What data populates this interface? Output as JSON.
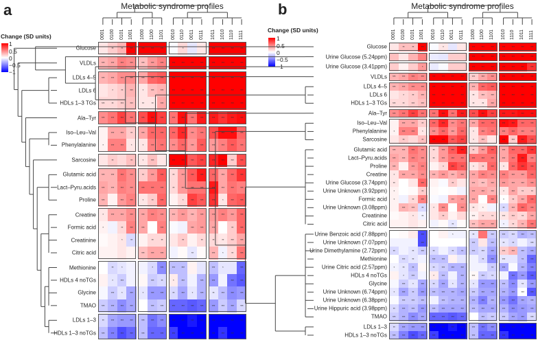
{
  "panels": {
    "a": {
      "letter": "a",
      "title": "Metabolic syndrome profiles"
    },
    "b": {
      "letter": "b",
      "title": "Metabolic syndrome profiles"
    }
  },
  "legend": {
    "title": "Change (SD units)",
    "ticks": [
      "1",
      "0.5",
      "0",
      "−0.5",
      "−1"
    ],
    "colors": {
      "high": "#ff0000",
      "mid": "#ffffff",
      "low": "#0000ff"
    }
  },
  "star_key": {
    "0": "",
    "1": "*",
    "2": "**",
    "3": "***"
  },
  "chart_data": [
    {
      "type": "heatmap",
      "panel": "a",
      "title": "Metabolic syndrome profiles",
      "legend_title": "Change (SD units)",
      "value_range": [
        -1,
        1
      ],
      "column_groups": [
        [
          "0001",
          "0100",
          "0101",
          "1001"
        ],
        [
          "1000",
          "1100",
          "1101"
        ],
        [
          "0010",
          "0110",
          "0011",
          "0111"
        ],
        [
          "1011",
          "1010",
          "1110",
          "1111"
        ]
      ],
      "row_groups": [
        [
          "Glucose"
        ],
        [
          "VLDLs"
        ],
        [
          "LDLs 4–5",
          "LDLs 6",
          "HDLs 1–3 TGs"
        ],
        [
          "Ala–Tyr"
        ],
        [
          "Iso–Leu–Val",
          "Phenylalanine"
        ],
        [
          "Sarcosine"
        ],
        [
          "Glutamic acid",
          "Lact–Pyru.acids",
          "Proline"
        ],
        [
          "Creatine",
          "Formic acid",
          "Creatinine",
          "Citric acid"
        ],
        [
          "Methionine",
          "HDLs 4 noTGs",
          "Glycine",
          "TMAO"
        ],
        [
          "LDLs 1–3",
          "HDLs 1–3 noTGs"
        ]
      ],
      "values": [
        [
          0.1,
          0.2,
          0.3,
          1,
          1,
          1,
          1,
          -0.02,
          0.15,
          -0.1,
          0.1,
          1,
          1,
          1,
          1
        ],
        [
          0.3,
          0.35,
          0.5,
          0.45,
          0.25,
          0.4,
          0.5,
          1,
          1,
          1,
          1,
          1,
          1,
          1,
          1
        ],
        [
          0.3,
          0.35,
          0.45,
          0.45,
          0.35,
          0.6,
          0.65,
          1,
          1,
          1,
          1,
          1,
          1,
          1,
          1
        ],
        [
          0.1,
          0.15,
          0.2,
          0.3,
          0.1,
          0.25,
          0.3,
          1,
          1,
          1,
          1,
          1,
          1,
          1,
          1
        ],
        [
          0.15,
          0.15,
          0.2,
          0.25,
          0.1,
          0.1,
          0.35,
          1,
          1,
          1,
          1,
          1,
          1,
          1,
          1
        ],
        [
          0.45,
          0.55,
          0.75,
          0.55,
          0.7,
          0.95,
          0.75,
          0.55,
          0.95,
          0.55,
          0.9,
          0.9,
          0.8,
          0.9,
          0.95
        ],
        [
          0.05,
          0.35,
          0.35,
          0.2,
          0.35,
          0.6,
          0.6,
          0.6,
          0.85,
          0.45,
          0.55,
          0.7,
          0.95,
          0.95,
          0.6
        ],
        [
          0.05,
          0.5,
          0.5,
          0.1,
          0.1,
          0.5,
          0.55,
          0.45,
          0.6,
          0.4,
          0.65,
          0.4,
          0.5,
          0.65,
          0.55
        ],
        [
          0.1,
          0.2,
          0.15,
          0.25,
          0.1,
          0.25,
          0.1,
          1,
          1,
          0.65,
          0.75,
          0.85,
          1,
          0.2,
          0.7
        ],
        [
          0.3,
          0.3,
          0.55,
          0.45,
          0.2,
          0.4,
          0.65,
          0.15,
          0.4,
          0.65,
          0.9,
          0.6,
          0.35,
          0.6,
          0.8
        ],
        [
          0.35,
          0.3,
          0.5,
          0.45,
          0.55,
          0.55,
          0.55,
          0.15,
          0.4,
          0.55,
          0.55,
          0.9,
          0.35,
          0.55,
          0.5
        ],
        [
          0.3,
          0.05,
          0.4,
          0.5,
          0.1,
          0.2,
          0.6,
          0.05,
          0.15,
          0.75,
          0.65,
          0.8,
          0.1,
          0.6,
          0.65
        ],
        [
          0.1,
          0.35,
          0.35,
          0.45,
          0.35,
          0.5,
          0.45,
          0.3,
          0.4,
          0.3,
          0.4,
          0.4,
          0.5,
          0.4,
          0.6
        ],
        [
          0.05,
          -0.05,
          0.15,
          0.5,
          0.35,
          0,
          0.5,
          -0.02,
          -0.05,
          0.35,
          0.4,
          0.35,
          0,
          0.2,
          0.6
        ],
        [
          0.02,
          0.05,
          0.1,
          -0.15,
          0.05,
          0.15,
          0.15,
          0.1,
          0.2,
          0.05,
          0.15,
          0.15,
          0.1,
          0.2,
          0.35
        ],
        [
          0.05,
          0.05,
          0.1,
          0.05,
          0.25,
          0.35,
          0.35,
          -0.05,
          0.02,
          -0.1,
          0.02,
          0.3,
          -0.05,
          0.15,
          0.55
        ],
        [
          0,
          -0.15,
          -0.1,
          -0.05,
          -0.05,
          -0.15,
          -0.45,
          -0.25,
          -0.25,
          0.05,
          -0.1,
          -0.25,
          -0.1,
          -0.1,
          -0.6
        ],
        [
          0.05,
          -0.1,
          -0.2,
          -0.05,
          0.03,
          -0.2,
          -0.15,
          0.08,
          -0.25,
          -0.05,
          -0.3,
          -0.4,
          -0.05,
          -0.55,
          -0.65
        ],
        [
          -0.03,
          -0.2,
          -0.1,
          -0.35,
          -0.1,
          -0.4,
          -0.4,
          -0.15,
          -0.35,
          -0.1,
          -0.3,
          -0.1,
          -0.25,
          -0.45,
          -0.4
        ],
        [
          -0.2,
          -0.3,
          -0.45,
          -0.35,
          0,
          -0.25,
          -0.2,
          -0.6,
          -0.6,
          -0.65,
          -0.6,
          -0.4,
          -0.2,
          -0.35,
          -0.15
        ],
        [
          -0.15,
          -0.35,
          -0.4,
          -0.4,
          -0.25,
          -0.55,
          -0.45,
          -1,
          -1,
          -0.9,
          -1,
          -1,
          -1,
          -1,
          -1
        ],
        [
          -0.25,
          -0.5,
          -0.7,
          -0.6,
          -0.25,
          -0.6,
          -0.6,
          -0.75,
          -1,
          -1,
          -1,
          -1,
          -0.8,
          -1,
          -1
        ]
      ],
      "significance": [
        "022333301003333",
        "333333333333333",
        "333333333333333",
        "012313333333333",
        "323322333333333",
        "333333333333333",
        "033233333333333",
        "133113333333333",
        "020213033333333",
        "333323323333333",
        "333333323333333",
        "303312301333133",
        "133333333333333",
        "102330300333023",
        "001202202022233",
        "000033300203123",
        "021001333003103",
        "013003213033033",
        "031313323132333",
        "333303333333333",
        "233333333333333",
        "333333333333333"
      ]
    },
    {
      "type": "heatmap",
      "panel": "b",
      "title": "Metabolic syndrome profiles",
      "legend_title": "Change (SD units)",
      "value_range": [
        -1,
        1
      ],
      "column_groups": [
        [
          "0001",
          "0100",
          "0101",
          "1001"
        ],
        [
          "0010",
          "0110",
          "0011",
          "0111"
        ],
        [
          "1000",
          "1100",
          "1101"
        ],
        [
          "1010",
          "1110",
          "1011",
          "1111"
        ]
      ],
      "row_groups": [
        [
          "Glucose"
        ],
        [
          "Urine Glucose (5.24ppm)"
        ],
        [
          "Urine Glucose (3.41ppm)"
        ],
        [
          "VLDLs"
        ],
        [
          "LDLs 4–5",
          "LDLs 6",
          "HDLs 1–3 TGs"
        ],
        [
          "Ala–Tyr"
        ],
        [
          "Iso–Leu–Val",
          "Phenylalanine",
          "Sarcosine"
        ],
        [
          "Glutamic acid",
          "Lact–Pyru.acids",
          "Proline",
          "Creatine",
          "Urine Glucose (3.74ppm)",
          "Urine Unknown (3.92ppm)",
          "Formic acid",
          "Urine Unknown (3.08ppm)",
          "Creatinine",
          "Citric acid"
        ],
        [
          "Urine Benzoic acid (7.88ppm)",
          "Urine Unknown (7.07ppm)",
          "Urine Dimethylamine (2.72ppm)",
          "Methionine",
          "Urine Citric acid (2.57ppm)",
          "HDLs 4 noTGs",
          "Glycine",
          "Urine Unknown (6.74ppm)",
          "Urine Unknown (6.38ppm)",
          "Urine Hippuric acid (3.98ppm)",
          "TMAO"
        ],
        [
          "LDLs 1–3",
          "HDLs 1–3 noTGs"
        ]
      ],
      "values": [
        [
          0.1,
          0.25,
          0.25,
          1,
          -0.02,
          0.1,
          -0.1,
          0.1,
          1,
          1,
          1,
          1,
          1,
          1,
          1
        ],
        [
          0.25,
          0.1,
          0.3,
          0.5,
          -0.08,
          -0.1,
          0.2,
          0.2,
          1,
          1,
          1,
          1,
          1,
          1,
          1
        ],
        [
          0.2,
          0.05,
          0.2,
          0.4,
          -0.08,
          -0.02,
          0.2,
          0.2,
          1,
          1,
          1,
          1,
          1,
          1,
          0.8
        ],
        [
          0.3,
          0.35,
          0.5,
          0.45,
          1,
          1,
          1,
          1,
          0.2,
          0.35,
          0.45,
          1,
          1,
          1,
          1
        ],
        [
          0.3,
          0.35,
          0.45,
          0.45,
          1,
          1,
          1,
          1,
          0.3,
          0.6,
          0.65,
          1,
          1,
          1,
          1
        ],
        [
          0.1,
          0.15,
          0.2,
          0.3,
          1,
          1,
          1,
          1,
          0.1,
          0.25,
          0.3,
          1,
          1,
          1,
          1
        ],
        [
          0.15,
          0.15,
          0.2,
          0.25,
          1,
          1,
          1,
          1,
          0.1,
          0.1,
          0.35,
          1,
          1,
          1,
          1
        ],
        [
          0.45,
          0.55,
          0.75,
          0.55,
          0.55,
          0.95,
          0.55,
          0.9,
          0.7,
          0.95,
          0.75,
          0.9,
          0.9,
          0.95,
          0.95
        ],
        [
          0.05,
          0.35,
          0.35,
          0.2,
          0.6,
          0.85,
          0.45,
          0.55,
          0.35,
          0.6,
          0.6,
          0.95,
          0.9,
          0.6,
          0.6
        ],
        [
          0.05,
          0.5,
          0.5,
          0.1,
          0.45,
          0.6,
          0.4,
          0.6,
          0.1,
          0.5,
          0.55,
          0.5,
          0.6,
          0.5,
          0.5
        ],
        [
          0.1,
          0.2,
          0.15,
          0.25,
          1,
          1,
          0.65,
          0.75,
          0.1,
          0.25,
          0.1,
          1,
          0.2,
          0.9,
          0.7
        ],
        [
          0.3,
          0.3,
          0.55,
          0.45,
          0.15,
          0.4,
          0.65,
          0.9,
          0.2,
          0.4,
          0.65,
          0.35,
          0.6,
          0.6,
          0.8
        ],
        [
          0.35,
          0.3,
          0.5,
          0.45,
          0.15,
          0.4,
          0.55,
          0.55,
          0.55,
          0.55,
          0.55,
          0.35,
          0.55,
          0.9,
          0.5
        ],
        [
          0.3,
          0.05,
          0.4,
          0.5,
          0.05,
          0.15,
          0.75,
          0.65,
          0.1,
          0.2,
          0.6,
          0.1,
          0.6,
          0.8,
          0.65
        ],
        [
          0.1,
          0.35,
          0.35,
          0.45,
          0.3,
          0.4,
          0.3,
          0.4,
          0.35,
          0.5,
          0.45,
          0.5,
          0.4,
          0.4,
          0.6
        ],
        [
          0.1,
          0,
          0.1,
          0.6,
          0.05,
          -0.02,
          0.2,
          0.1,
          0.3,
          0.25,
          0.35,
          0.4,
          0.35,
          0.35,
          0.45
        ],
        [
          0.05,
          0,
          0.02,
          0.2,
          0.02,
          0,
          0.02,
          -0.05,
          0.35,
          0.35,
          0.3,
          0.1,
          0.35,
          0.2,
          0.2
        ],
        [
          0.05,
          -0.05,
          0.15,
          0.5,
          -0.02,
          -0.05,
          0.35,
          0.4,
          0.35,
          0,
          0.5,
          0,
          0.2,
          0.35,
          0.6
        ],
        [
          0.05,
          0.3,
          0.25,
          -0.15,
          0.1,
          0.45,
          0,
          0.45,
          0.1,
          0.05,
          -0.05,
          -0.15,
          0.3,
          0.6,
          0.5
        ],
        [
          0.02,
          0.05,
          0.1,
          -0.05,
          0.1,
          0.2,
          0.05,
          0.15,
          0.05,
          0.15,
          0.15,
          0.1,
          0.2,
          0.15,
          0.35
        ],
        [
          0.05,
          0.05,
          0.1,
          0.05,
          -0.05,
          0.02,
          -0.1,
          0.02,
          0.25,
          0.35,
          0.35,
          -0.05,
          0.15,
          0.3,
          0.55
        ],
        [
          0,
          0.02,
          0.08,
          -0.7,
          0,
          0.05,
          -0.05,
          -0.05,
          -0.1,
          0.55,
          -0.2,
          -0.2,
          -0.15,
          -0.3,
          -0.25
        ],
        [
          -0.05,
          -0.05,
          -0.05,
          -0.7,
          0,
          0,
          0,
          0,
          -0.2,
          0.1,
          -0.25,
          -0.1,
          -0.15,
          -0.05,
          -0.15
        ],
        [
          -0.15,
          -0.05,
          -0.1,
          -0.2,
          -0.15,
          -0.05,
          -0.15,
          -0.25,
          -0.2,
          -0.15,
          -0.35,
          0.2,
          0.3,
          -0.25,
          -0.35
        ],
        [
          0,
          -0.15,
          -0.1,
          -0.05,
          -0.25,
          -0.25,
          0.05,
          -0.1,
          -0.05,
          -0.15,
          -0.45,
          -0.1,
          -0.1,
          -0.25,
          -0.6
        ],
        [
          -0.05,
          -0.1,
          -0.25,
          0.03,
          -0.15,
          -0.2,
          -0.3,
          -0.3,
          -0.05,
          -0.05,
          -0.2,
          -0.35,
          -0.02,
          -0.3,
          -0.5
        ],
        [
          0.05,
          -0.1,
          -0.2,
          -0.05,
          0.08,
          -0.25,
          -0.05,
          -0.3,
          0.03,
          -0.2,
          -0.15,
          -0.05,
          -0.55,
          -0.4,
          -0.65
        ],
        [
          -0.03,
          -0.2,
          -0.1,
          -0.35,
          -0.15,
          -0.35,
          -0.1,
          -0.3,
          -0.1,
          -0.4,
          -0.4,
          -0.25,
          -0.45,
          -0.1,
          -0.4
        ],
        [
          -0.1,
          -0.35,
          -0.2,
          -0.4,
          -0.25,
          -0.3,
          -0.3,
          -0.35,
          -0.2,
          -0.35,
          -0.35,
          -0.3,
          -0.4,
          0,
          -0.65
        ],
        [
          -0.02,
          -0.2,
          -0.2,
          -0.25,
          -0.05,
          -0.25,
          -0.3,
          -0.3,
          -0.3,
          -0.5,
          -0.3,
          -0.4,
          -0.55,
          -0.35,
          -0.3
        ],
        [
          -0.15,
          -0.3,
          -0.25,
          -0.4,
          -0.25,
          -0.35,
          -0.35,
          -0.35,
          -0.25,
          -0.35,
          -0.35,
          -0.3,
          -0.45,
          -0.4,
          -0.35
        ],
        [
          -0.2,
          -0.3,
          -0.45,
          -0.35,
          -0.6,
          -0.6,
          -0.65,
          -0.6,
          0,
          -0.25,
          -0.2,
          -0.2,
          -0.35,
          -0.4,
          -0.15
        ],
        [
          -0.15,
          -0.35,
          -0.4,
          -0.4,
          -1,
          -1,
          -0.9,
          -1,
          -0.25,
          -0.55,
          -0.45,
          -1,
          -1,
          -1,
          -1
        ],
        [
          -0.25,
          -0.5,
          -0.7,
          -0.6,
          -0.75,
          -1,
          -1,
          -1,
          -0.25,
          -0.6,
          -0.6,
          -0.8,
          -1,
          -1,
          -1
        ]
      ],
      "significance": [
        "022301003333333",
        "000000003333333",
        "000100003333333",
        "333333333333333",
        "333333333333333",
        "012333332333333",
        "323333332233333",
        "333333333333333",
        "033233333333333",
        "133133331333333",
        "020233331303333",
        "333323332333333",
        "333323333333333",
        "303301331231333",
        "133333333333333",
        "200300203333333",
        "100200003331322",
        "102300333031233",
        "033213032102333",
        "001202003223323",
        "000000203331223",
        "000300102033333",
        "000300003032203",
        "202320223333333",
        "032033000233023",
        "122023330023033",
        "013013033320333",
        "031323131333323",
        "132333333333333",
        "033303333333333",
        "233333333333333",
        "333333330333333",
        "233333333333333",
        "333333333333333"
      ]
    }
  ]
}
